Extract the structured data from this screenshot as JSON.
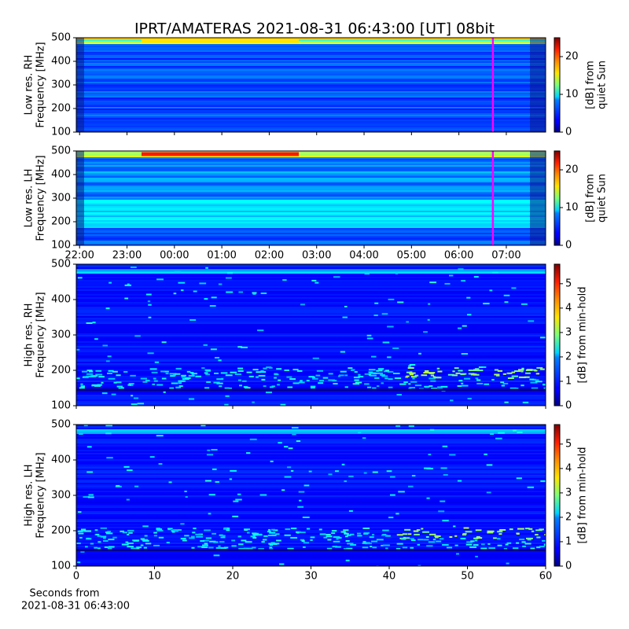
{
  "chart_data": [
    {
      "type": "heatmap",
      "title": "IPRT/AMATERAS 2021-08-31 06:43:00 [UT]   08bit",
      "ylabel": [
        "Low res. RH",
        "Frequency [MHz]"
      ],
      "ylim": [
        100,
        500
      ],
      "yticks": [
        100,
        200,
        300,
        400,
        500
      ],
      "xlim": [
        21.93,
        31.83
      ],
      "xticks": [
        22,
        23,
        24,
        25,
        26,
        27,
        28,
        29,
        30,
        31
      ],
      "xticklabels": false,
      "marker_x": 30.717,
      "marker_color": "#ff00ff",
      "colorbar_label": [
        "[dB] from",
        "quiet Sun"
      ],
      "clim": [
        0,
        25
      ],
      "cticks": [
        0,
        10,
        20
      ],
      "colormap": "jet"
    },
    {
      "type": "heatmap",
      "ylabel": [
        "Low res. LH",
        "Frequency [MHz]"
      ],
      "ylim": [
        100,
        500
      ],
      "yticks": [
        100,
        200,
        300,
        400,
        500
      ],
      "xlim": [
        21.93,
        31.83
      ],
      "xticks": [
        {
          "value": 22,
          "label": "22:00"
        },
        {
          "value": 23,
          "label": "23:00"
        },
        {
          "value": 24,
          "label": "00:00"
        },
        {
          "value": 25,
          "label": "01:00"
        },
        {
          "value": 26,
          "label": "02:00"
        },
        {
          "value": 27,
          "label": "03:00"
        },
        {
          "value": 28,
          "label": "04:00"
        },
        {
          "value": 29,
          "label": "05:00"
        },
        {
          "value": 30,
          "label": "06:00"
        },
        {
          "value": 31,
          "label": "07:00"
        }
      ],
      "marker_x": 30.717,
      "marker_color": "#ff00ff",
      "colorbar_label": [
        "[dB] from",
        "quiet Sun"
      ],
      "clim": [
        0,
        25
      ],
      "cticks": [
        0,
        10,
        20
      ],
      "colormap": "jet"
    },
    {
      "type": "heatmap",
      "ylabel": [
        "High res. RH",
        "Frequency [MHz]"
      ],
      "ylim": [
        100,
        500
      ],
      "yticks": [
        100,
        200,
        300,
        400,
        500
      ],
      "xlim": [
        0,
        60
      ],
      "xticks": [
        0,
        10,
        20,
        30,
        40,
        50,
        60
      ],
      "xticklabels": false,
      "colorbar_label": [
        "[dB] from min-hold"
      ],
      "clim": [
        0,
        5.8
      ],
      "cticks": [
        0,
        1,
        2,
        3,
        4,
        5
      ],
      "colormap": "jet"
    },
    {
      "type": "heatmap",
      "ylabel": [
        "High res. LH",
        "Frequency [MHz]"
      ],
      "ylim": [
        100,
        500
      ],
      "yticks": [
        100,
        200,
        300,
        400,
        500
      ],
      "xlim": [
        0,
        60
      ],
      "xticks": [
        0,
        10,
        20,
        30,
        40,
        50,
        60
      ],
      "xlabel": [
        "Seconds from",
        "2021-08-31 06:43:00"
      ],
      "colorbar_label": [
        "[dB] from min-hold"
      ],
      "clim": [
        0,
        5.8
      ],
      "cticks": [
        0,
        1,
        2,
        3,
        4,
        5
      ],
      "colormap": "jet"
    }
  ]
}
